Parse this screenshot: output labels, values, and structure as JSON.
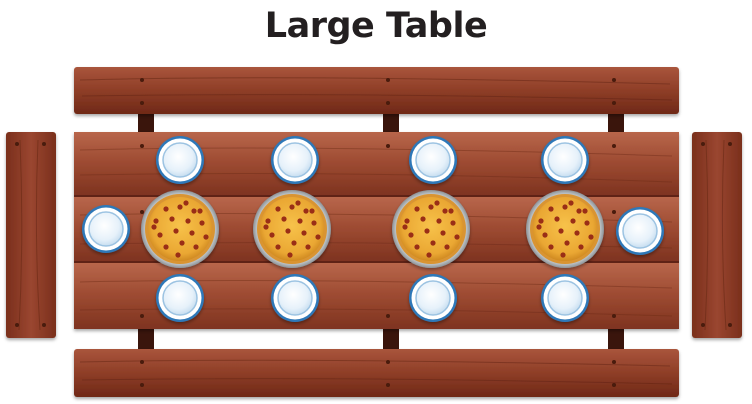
{
  "title": "Large Table",
  "colors": {
    "wood_dark": "#6b2414",
    "wood_mid": "#9a4a33",
    "wood_light": "#b5634a",
    "plate_rim": "#3f86c4",
    "plate_face": "#eef6fc",
    "pizza_crust": "#e3a635",
    "pizza_cheese": "#f2b63f",
    "pepperoni": "#a0341c",
    "pan": "#b9bfc4",
    "title_text": "#231f20"
  },
  "scene": {
    "table": "tabletop-three-planks",
    "benches": [
      "top-bench",
      "bottom-bench",
      "left-end-bench",
      "right-end-bench"
    ],
    "pizza_count": 4,
    "plate_count": 10
  }
}
